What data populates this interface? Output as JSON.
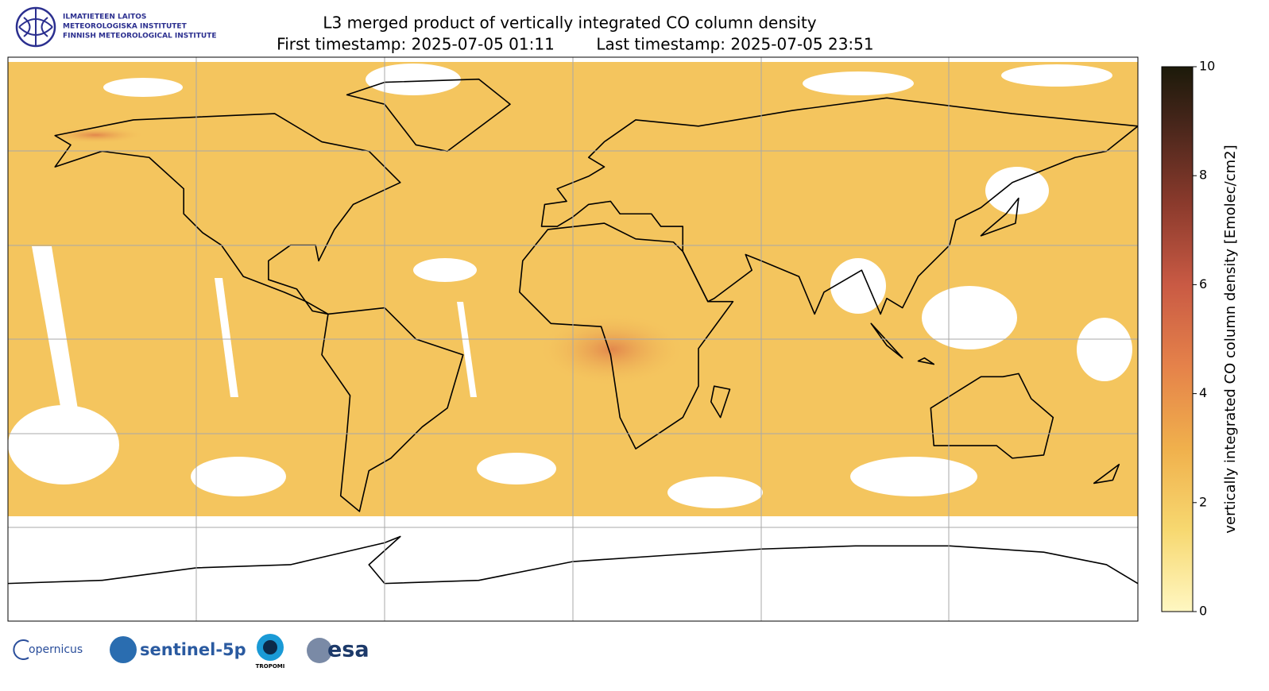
{
  "header": {
    "institute": [
      "ILMATIETEEN LAITOS",
      "METEOROLOGISKA INSTITUTET",
      "FINNISH METEOROLOGICAL INSTITUTE"
    ],
    "title": "L3 merged product of vertically integrated CO column density",
    "first_timestamp": "First timestamp: 2025-07-05 01:11",
    "last_timestamp": "Last timestamp: 2025-07-05 23:51"
  },
  "colorbar": {
    "label": "vertically integrated CO column density [Emolec/cm2]",
    "lim": [
      0,
      10
    ],
    "ticks": [
      0,
      2,
      4,
      6,
      8,
      10
    ]
  },
  "footer": {
    "copernicus": "opernicus",
    "sentinel": "sentinel-5p",
    "tropomi": "TROPOMI",
    "esa": "esa"
  }
}
